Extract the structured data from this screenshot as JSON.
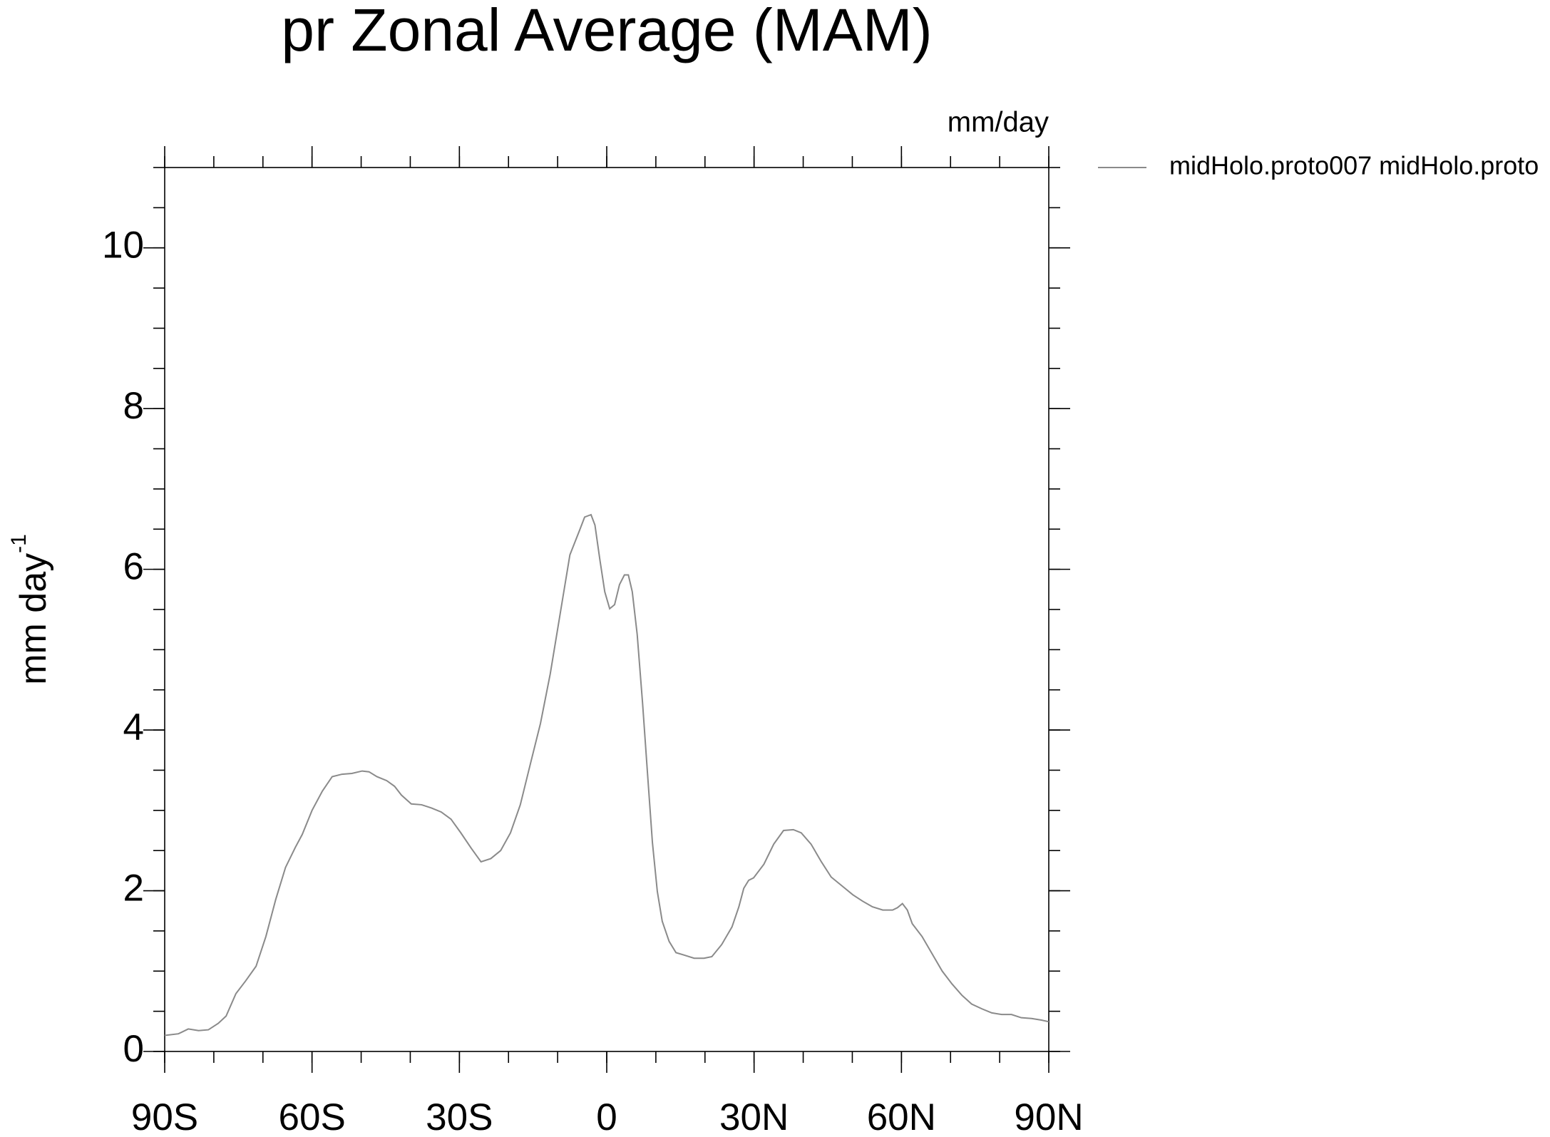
{
  "chart_data": {
    "type": "line",
    "title": "pr Zonal Average (MAM)",
    "units_label": "mm/day",
    "y_label": "mm day",
    "y_label_superscript": "-1",
    "xlim": [
      -90,
      90
    ],
    "xticks": [
      {
        "value": -90,
        "label": "90S"
      },
      {
        "value": -60,
        "label": "60S"
      },
      {
        "value": -30,
        "label": "30S"
      },
      0,
      {
        "value": 30,
        "label": "30N"
      },
      {
        "value": 60,
        "label": "60N"
      },
      {
        "value": 90,
        "label": "90N"
      }
    ],
    "ylim": [
      0,
      11
    ],
    "yticks": [
      0,
      2,
      4,
      6,
      8,
      10
    ],
    "x": [
      -90,
      -87.2,
      -85.2,
      -83.1,
      -81.1,
      -79.1,
      -77.5,
      -75.5,
      -73.5,
      -71.4,
      -69.4,
      -67.4,
      -65.4,
      -63.4,
      -62,
      -60,
      -57.9,
      -55.9,
      -53.9,
      -51.9,
      -49.8,
      -48.4,
      -46.8,
      -44.8,
      -43.2,
      -41.8,
      -39.8,
      -37.7,
      -35.7,
      -33.7,
      -31.7,
      -29.7,
      -27.6,
      -25.6,
      -23.6,
      -21.6,
      -19.6,
      -17.6,
      -15.5,
      -13.5,
      -11.5,
      -9.5,
      -7.5,
      -5.5,
      -4.5,
      -3.2,
      -2.4,
      -1.4,
      -0.4,
      0.6,
      1.6,
      2.6,
      3.6,
      4.4,
      5.2,
      6.2,
      7.3,
      8.3,
      9.3,
      10.3,
      11.3,
      12.7,
      14.1,
      15.7,
      17.8,
      19.8,
      21.4,
      23.4,
      25.5,
      26.9,
      27.9,
      28.9,
      29.9,
      32,
      34,
      36,
      38,
      39.6,
      41.6,
      43.7,
      45.7,
      48.1,
      50.1,
      52.1,
      54.1,
      56.2,
      58.2,
      59.2,
      60.2,
      61.2,
      62.2,
      64.2,
      66.3,
      68.3,
      70.3,
      72.3,
      74.3,
      76.4,
      78.4,
      80.4,
      82.4,
      84.4,
      86.5,
      88.5,
      90
    ],
    "series": [
      {
        "name": "midHolo.proto007  midHolo.proto",
        "color": "#8a8a8a",
        "values": [
          0.2,
          0.22,
          0.28,
          0.26,
          0.27,
          0.35,
          0.44,
          0.72,
          0.88,
          1.06,
          1.43,
          1.89,
          2.29,
          2.54,
          2.7,
          3.0,
          3.24,
          3.42,
          3.45,
          3.46,
          3.49,
          3.48,
          3.42,
          3.37,
          3.3,
          3.19,
          3.08,
          3.07,
          3.03,
          2.98,
          2.89,
          2.72,
          2.53,
          2.36,
          2.4,
          2.5,
          2.72,
          3.07,
          3.59,
          4.08,
          4.7,
          5.44,
          6.18,
          6.49,
          6.65,
          6.68,
          6.55,
          6.12,
          5.72,
          5.51,
          5.56,
          5.81,
          5.93,
          5.93,
          5.72,
          5.19,
          4.33,
          3.46,
          2.6,
          1.99,
          1.62,
          1.37,
          1.23,
          1.2,
          1.16,
          1.16,
          1.18,
          1.33,
          1.55,
          1.8,
          2.03,
          2.13,
          2.16,
          2.33,
          2.58,
          2.75,
          2.76,
          2.72,
          2.58,
          2.36,
          2.17,
          2.05,
          1.95,
          1.87,
          1.8,
          1.76,
          1.76,
          1.79,
          1.84,
          1.76,
          1.59,
          1.43,
          1.21,
          1.0,
          0.84,
          0.7,
          0.59,
          0.53,
          0.48,
          0.46,
          0.46,
          0.42,
          0.41,
          0.39,
          0.37
        ]
      }
    ]
  }
}
